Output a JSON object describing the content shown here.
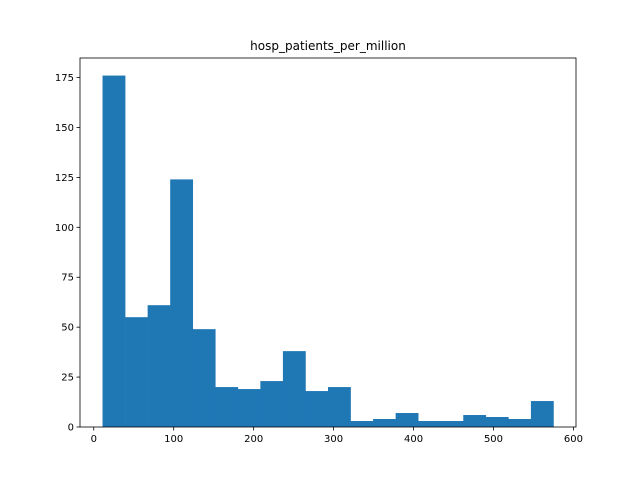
{
  "chart_data": {
    "type": "histogram",
    "title": "hosp_patients_per_million",
    "xlabel": "",
    "ylabel": "",
    "bin_edges": [
      11,
      39.2,
      67.4,
      95.6,
      123.8,
      152,
      180.2,
      208.4,
      236.6,
      264.8,
      293,
      321.2,
      349.4,
      377.6,
      405.8,
      434,
      462.2,
      490.4,
      518.6,
      546.8,
      575
    ],
    "values": [
      176,
      55,
      61,
      124,
      49,
      20,
      19,
      23,
      38,
      18,
      20,
      3,
      4,
      7,
      3,
      3,
      6,
      5,
      4,
      13
    ],
    "xlim": [
      -17.2,
      603.2
    ],
    "ylim": [
      0,
      184.8
    ],
    "xticks": [
      0,
      100,
      200,
      300,
      400,
      500,
      600
    ],
    "yticks": [
      0,
      25,
      50,
      75,
      100,
      125,
      150,
      175
    ],
    "bar_color": "#1f77b4",
    "grid": false
  }
}
